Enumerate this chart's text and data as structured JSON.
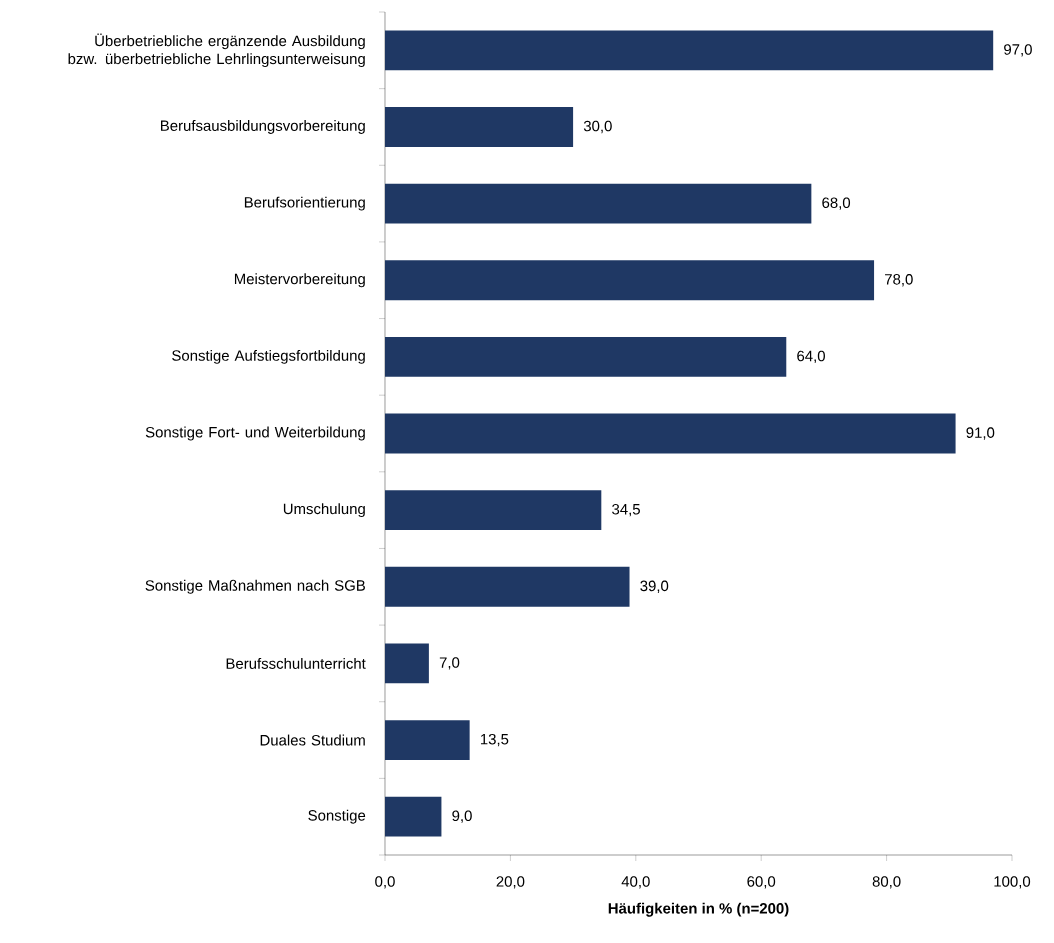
{
  "chart_data": {
    "type": "bar",
    "orientation": "horizontal",
    "xlabel": "Häufigkeiten in % (n=200)",
    "categories": [
      "Überbetriebliche ergänzende Ausbildung bzw. überbetriebliche Lehrlingsunterweisung",
      "Berufsausbildungsvorbereitung",
      "Berufsorientierung",
      "Meistervorbereitung",
      "Sonstige Aufstiegsfortbildung",
      "Sonstige Fort- und Weiterbildung",
      "Umschulung",
      "Sonstige Maßnahmen nach SGB",
      "Berufsschulunterricht",
      "Duales Studium",
      "Sonstige"
    ],
    "values": [
      97.0,
      30.0,
      68.0,
      78.0,
      64.0,
      91.0,
      34.5,
      39.0,
      7.0,
      13.5,
      9.0
    ],
    "value_labels": [
      "97,0",
      "30,0",
      "68,0",
      "78,0",
      "64,0",
      "91,0",
      "34,5",
      "39,0",
      "7,0",
      "13,5",
      "9,0"
    ],
    "color": "#1f3864",
    "xlim": [
      0,
      100
    ],
    "xticks": [
      {
        "value": 0,
        "label": "0,0"
      },
      {
        "value": 20,
        "label": "20,0"
      },
      {
        "value": 40,
        "label": "40,0"
      },
      {
        "value": 60,
        "label": "60,0"
      },
      {
        "value": 80,
        "label": "80,0"
      },
      {
        "value": 100,
        "label": "100,0"
      }
    ]
  }
}
